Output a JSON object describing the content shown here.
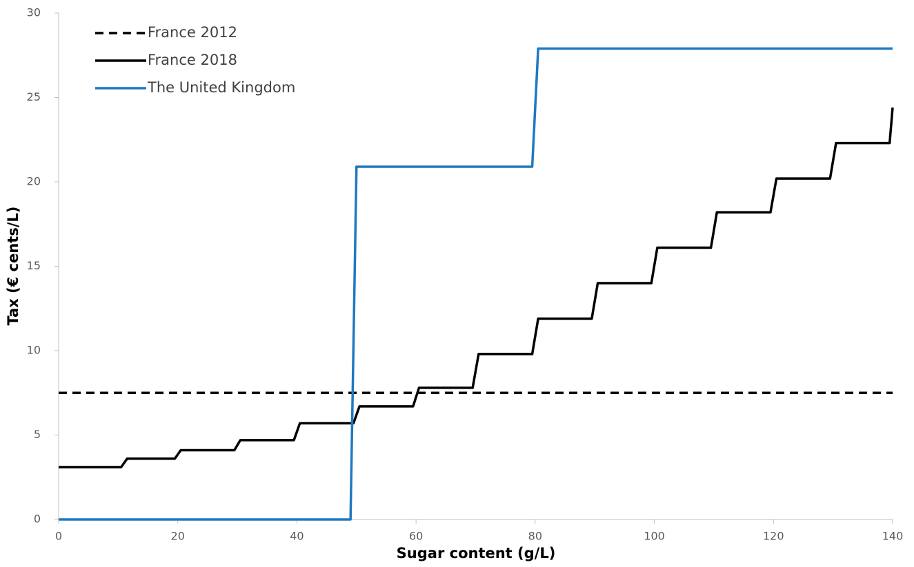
{
  "chart_data": {
    "type": "line",
    "xlabel": "Sugar content (g/L)",
    "ylabel": "Tax (€ cents/L)",
    "xlim": [
      0,
      140
    ],
    "xticks": [
      0,
      20,
      40,
      60,
      80,
      100,
      120,
      140
    ],
    "ylim": [
      0,
      30
    ],
    "yticks": [
      0,
      5,
      10,
      15,
      20,
      25,
      30
    ],
    "grid": false,
    "legend": "top-left",
    "series": [
      {
        "name": "France 2012",
        "color": "#000000",
        "dashed": true,
        "x": [
          0,
          140
        ],
        "values": [
          7.5,
          7.5
        ]
      },
      {
        "name": "France 2018",
        "color": "#000000",
        "dashed": false,
        "x": [
          0,
          10.5,
          11.5,
          19.5,
          20.5,
          29.5,
          30.5,
          39.5,
          40.5,
          49.5,
          50.5,
          59.5,
          60.5,
          69.5,
          70.5,
          79.5,
          80.5,
          89.5,
          90.5,
          99.5,
          100.5,
          109.5,
          110.5,
          119.5,
          120.5,
          129.5,
          130.5,
          139.5,
          140
        ],
        "values": [
          3.1,
          3.1,
          3.6,
          3.6,
          4.1,
          4.1,
          4.7,
          4.7,
          5.7,
          5.7,
          6.7,
          6.7,
          7.8,
          7.8,
          9.8,
          9.8,
          11.9,
          11.9,
          14.0,
          14.0,
          16.1,
          16.1,
          18.2,
          18.2,
          20.2,
          20.2,
          22.3,
          22.3,
          24.4
        ]
      },
      {
        "name": "The United Kingdom",
        "color": "#1f78c1",
        "dashed": false,
        "x": [
          0,
          49,
          50,
          79.5,
          80.5,
          140
        ],
        "values": [
          0,
          0,
          20.9,
          20.9,
          27.9,
          27.9
        ]
      }
    ]
  }
}
